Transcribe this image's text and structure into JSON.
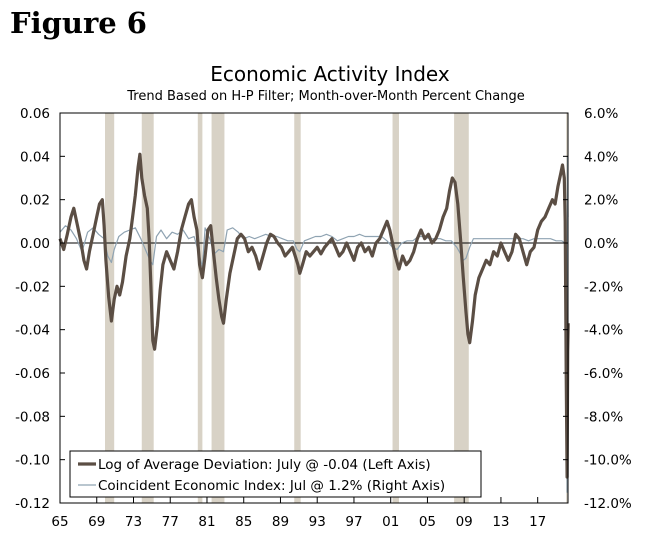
{
  "figure_label": "Figure 6",
  "chart_data": {
    "type": "line",
    "title": "Economic Activity Index",
    "subtitle": "Trend Based on H-P Filter; Month-over-Month Percent Change",
    "x_range": [
      1965,
      2020.3
    ],
    "x_ticks": [
      {
        "value": 1965,
        "label": "65"
      },
      {
        "value": 1969,
        "label": "69"
      },
      {
        "value": 1973,
        "label": "73"
      },
      {
        "value": 1977,
        "label": "77"
      },
      {
        "value": 1981,
        "label": "81"
      },
      {
        "value": 1985,
        "label": "85"
      },
      {
        "value": 1989,
        "label": "89"
      },
      {
        "value": 1993,
        "label": "93"
      },
      {
        "value": 1997,
        "label": "97"
      },
      {
        "value": 2001,
        "label": "01"
      },
      {
        "value": 2005,
        "label": "05"
      },
      {
        "value": 2009,
        "label": "09"
      },
      {
        "value": 2013,
        "label": "13"
      },
      {
        "value": 2017,
        "label": "17"
      }
    ],
    "left_axis": {
      "ylim": [
        -0.12,
        0.06
      ],
      "ticks": [
        "0.06",
        "0.04",
        "0.02",
        "0.00",
        "-0.02",
        "-0.04",
        "-0.06",
        "-0.08",
        "-0.10",
        "-0.12"
      ],
      "tick_values": [
        0.06,
        0.04,
        0.02,
        0.0,
        -0.02,
        -0.04,
        -0.06,
        -0.08,
        -0.1,
        -0.12
      ]
    },
    "right_axis": {
      "ylim": [
        -12.0,
        6.0
      ],
      "ticks": [
        "6.0%",
        "4.0%",
        "2.0%",
        "0.0%",
        "-2.0%",
        "-4.0%",
        "-6.0%",
        "-8.0%",
        "-10.0%",
        "-12.0%"
      ],
      "tick_values": [
        6,
        4,
        2,
        0,
        -2,
        -4,
        -6,
        -8,
        -10,
        -12
      ]
    },
    "recessions": [
      [
        1969.9,
        1970.9
      ],
      [
        1973.9,
        1975.2
      ],
      [
        1980.0,
        1980.5
      ],
      [
        1981.5,
        1982.9
      ],
      [
        1990.5,
        1991.2
      ],
      [
        2001.2,
        2001.9
      ],
      [
        2007.9,
        2009.5
      ],
      [
        2020.1,
        2020.3
      ]
    ],
    "series": [
      {
        "name": "Log of Average Deviation: July @ -0.04 (Left Axis)",
        "axis": "left",
        "color": "#5b4e44",
        "points": [
          [
            1965.0,
            0.002
          ],
          [
            1965.4,
            -0.003
          ],
          [
            1965.8,
            0.004
          ],
          [
            1966.2,
            0.012
          ],
          [
            1966.5,
            0.016
          ],
          [
            1966.9,
            0.008
          ],
          [
            1967.3,
            0.0
          ],
          [
            1967.6,
            -0.008
          ],
          [
            1967.9,
            -0.012
          ],
          [
            1968.2,
            -0.004
          ],
          [
            1968.6,
            0.004
          ],
          [
            1969.0,
            0.012
          ],
          [
            1969.3,
            0.018
          ],
          [
            1969.6,
            0.02
          ],
          [
            1969.8,
            0.008
          ],
          [
            1970.0,
            -0.008
          ],
          [
            1970.3,
            -0.025
          ],
          [
            1970.6,
            -0.036
          ],
          [
            1970.9,
            -0.026
          ],
          [
            1971.2,
            -0.02
          ],
          [
            1971.5,
            -0.024
          ],
          [
            1971.8,
            -0.018
          ],
          [
            1972.2,
            -0.006
          ],
          [
            1972.6,
            0.002
          ],
          [
            1972.9,
            0.012
          ],
          [
            1973.2,
            0.022
          ],
          [
            1973.5,
            0.035
          ],
          [
            1973.7,
            0.041
          ],
          [
            1973.9,
            0.03
          ],
          [
            1974.2,
            0.022
          ],
          [
            1974.5,
            0.016
          ],
          [
            1974.7,
            0.002
          ],
          [
            1974.9,
            -0.02
          ],
          [
            1975.1,
            -0.045
          ],
          [
            1975.3,
            -0.049
          ],
          [
            1975.6,
            -0.038
          ],
          [
            1975.9,
            -0.022
          ],
          [
            1976.2,
            -0.01
          ],
          [
            1976.6,
            -0.004
          ],
          [
            1977.0,
            -0.008
          ],
          [
            1977.4,
            -0.012
          ],
          [
            1977.8,
            -0.004
          ],
          [
            1978.2,
            0.006
          ],
          [
            1978.6,
            0.012
          ],
          [
            1979.0,
            0.018
          ],
          [
            1979.3,
            0.02
          ],
          [
            1979.6,
            0.012
          ],
          [
            1979.9,
            0.006
          ],
          [
            1980.2,
            -0.01
          ],
          [
            1980.5,
            -0.016
          ],
          [
            1980.8,
            -0.006
          ],
          [
            1981.1,
            0.006
          ],
          [
            1981.4,
            0.008
          ],
          [
            1981.7,
            -0.004
          ],
          [
            1982.0,
            -0.016
          ],
          [
            1982.3,
            -0.026
          ],
          [
            1982.6,
            -0.034
          ],
          [
            1982.8,
            -0.037
          ],
          [
            1983.1,
            -0.026
          ],
          [
            1983.5,
            -0.014
          ],
          [
            1983.9,
            -0.006
          ],
          [
            1984.3,
            0.002
          ],
          [
            1984.7,
            0.004
          ],
          [
            1985.1,
            0.002
          ],
          [
            1985.5,
            -0.004
          ],
          [
            1985.9,
            -0.002
          ],
          [
            1986.3,
            -0.006
          ],
          [
            1986.7,
            -0.012
          ],
          [
            1987.1,
            -0.006
          ],
          [
            1987.5,
            0.0
          ],
          [
            1987.9,
            0.004
          ],
          [
            1988.3,
            0.003
          ],
          [
            1988.7,
            0.0
          ],
          [
            1989.1,
            -0.002
          ],
          [
            1989.5,
            -0.006
          ],
          [
            1989.9,
            -0.004
          ],
          [
            1990.3,
            -0.002
          ],
          [
            1990.6,
            -0.006
          ],
          [
            1990.9,
            -0.01
          ],
          [
            1991.1,
            -0.014
          ],
          [
            1991.4,
            -0.01
          ],
          [
            1991.8,
            -0.004
          ],
          [
            1992.2,
            -0.006
          ],
          [
            1992.6,
            -0.004
          ],
          [
            1993.0,
            -0.002
          ],
          [
            1993.4,
            -0.005
          ],
          [
            1993.8,
            -0.002
          ],
          [
            1994.2,
            0.0
          ],
          [
            1994.6,
            0.002
          ],
          [
            1995.0,
            -0.002
          ],
          [
            1995.4,
            -0.006
          ],
          [
            1995.8,
            -0.004
          ],
          [
            1996.2,
            0.0
          ],
          [
            1996.6,
            -0.004
          ],
          [
            1997.0,
            -0.008
          ],
          [
            1997.4,
            -0.002
          ],
          [
            1997.8,
            0.0
          ],
          [
            1998.2,
            -0.004
          ],
          [
            1998.6,
            -0.002
          ],
          [
            1999.0,
            -0.006
          ],
          [
            1999.4,
            0.0
          ],
          [
            1999.8,
            0.002
          ],
          [
            2000.2,
            0.006
          ],
          [
            2000.6,
            0.01
          ],
          [
            2000.9,
            0.006
          ],
          [
            2001.2,
            0.0
          ],
          [
            2001.5,
            -0.006
          ],
          [
            2001.9,
            -0.012
          ],
          [
            2002.3,
            -0.006
          ],
          [
            2002.7,
            -0.01
          ],
          [
            2003.1,
            -0.008
          ],
          [
            2003.5,
            -0.004
          ],
          [
            2003.9,
            0.002
          ],
          [
            2004.3,
            0.006
          ],
          [
            2004.7,
            0.002
          ],
          [
            2005.1,
            0.004
          ],
          [
            2005.5,
            0.0
          ],
          [
            2005.9,
            0.002
          ],
          [
            2006.3,
            0.006
          ],
          [
            2006.7,
            0.012
          ],
          [
            2007.1,
            0.016
          ],
          [
            2007.4,
            0.024
          ],
          [
            2007.7,
            0.03
          ],
          [
            2008.0,
            0.028
          ],
          [
            2008.3,
            0.018
          ],
          [
            2008.6,
            0.002
          ],
          [
            2008.9,
            -0.016
          ],
          [
            2009.2,
            -0.032
          ],
          [
            2009.4,
            -0.042
          ],
          [
            2009.6,
            -0.046
          ],
          [
            2009.9,
            -0.036
          ],
          [
            2010.2,
            -0.024
          ],
          [
            2010.6,
            -0.016
          ],
          [
            2011.0,
            -0.012
          ],
          [
            2011.4,
            -0.008
          ],
          [
            2011.8,
            -0.01
          ],
          [
            2012.2,
            -0.004
          ],
          [
            2012.6,
            -0.006
          ],
          [
            2013.0,
            0.0
          ],
          [
            2013.4,
            -0.004
          ],
          [
            2013.8,
            -0.008
          ],
          [
            2014.2,
            -0.004
          ],
          [
            2014.6,
            0.004
          ],
          [
            2015.0,
            0.002
          ],
          [
            2015.4,
            -0.004
          ],
          [
            2015.8,
            -0.01
          ],
          [
            2016.2,
            -0.004
          ],
          [
            2016.6,
            -0.002
          ],
          [
            2017.0,
            0.006
          ],
          [
            2017.4,
            0.01
          ],
          [
            2017.8,
            0.012
          ],
          [
            2018.2,
            0.016
          ],
          [
            2018.6,
            0.02
          ],
          [
            2018.9,
            0.018
          ],
          [
            2019.2,
            0.026
          ],
          [
            2019.5,
            0.032
          ],
          [
            2019.7,
            0.036
          ],
          [
            2019.9,
            0.03
          ],
          [
            2020.0,
            0.01
          ],
          [
            2020.1,
            -0.06
          ],
          [
            2020.2,
            -0.108
          ],
          [
            2020.27,
            -0.05
          ],
          [
            2020.32,
            -0.037
          ]
        ]
      },
      {
        "name": "Coincident Economic Index: Jul @ 1.2% (Right Axis)",
        "axis": "right",
        "color": "#8fa3b2",
        "points": [
          [
            1965.0,
            0.5
          ],
          [
            1965.6,
            0.8
          ],
          [
            1966.2,
            0.6
          ],
          [
            1966.8,
            0.2
          ],
          [
            1967.4,
            -0.4
          ],
          [
            1968.0,
            0.5
          ],
          [
            1968.6,
            0.7
          ],
          [
            1969.2,
            0.4
          ],
          [
            1969.8,
            0.2
          ],
          [
            1970.2,
            -0.6
          ],
          [
            1970.6,
            -0.9
          ],
          [
            1970.9,
            -0.3
          ],
          [
            1971.4,
            0.3
          ],
          [
            1972.0,
            0.5
          ],
          [
            1972.6,
            0.6
          ],
          [
            1973.2,
            0.7
          ],
          [
            1973.8,
            0.2
          ],
          [
            1974.3,
            -0.3
          ],
          [
            1974.8,
            -0.8
          ],
          [
            1975.1,
            -1.0
          ],
          [
            1975.5,
            0.3
          ],
          [
            1976.0,
            0.6
          ],
          [
            1976.6,
            0.2
          ],
          [
            1977.2,
            0.5
          ],
          [
            1977.8,
            0.4
          ],
          [
            1978.4,
            0.6
          ],
          [
            1979.0,
            0.2
          ],
          [
            1979.6,
            0.3
          ],
          [
            1980.2,
            -0.6
          ],
          [
            1980.5,
            -1.1
          ],
          [
            1980.8,
            0.7
          ],
          [
            1981.3,
            0.2
          ],
          [
            1981.8,
            -0.5
          ],
          [
            1982.3,
            -0.3
          ],
          [
            1982.8,
            -0.4
          ],
          [
            1983.2,
            0.6
          ],
          [
            1983.8,
            0.7
          ],
          [
            1984.4,
            0.5
          ],
          [
            1985.0,
            0.2
          ],
          [
            1985.6,
            0.3
          ],
          [
            1986.2,
            0.2
          ],
          [
            1986.8,
            0.3
          ],
          [
            1987.4,
            0.4
          ],
          [
            1988.0,
            0.3
          ],
          [
            1988.6,
            0.3
          ],
          [
            1989.2,
            0.2
          ],
          [
            1989.8,
            0.1
          ],
          [
            1990.4,
            0.1
          ],
          [
            1990.8,
            -0.3
          ],
          [
            1991.1,
            -0.4
          ],
          [
            1991.6,
            0.1
          ],
          [
            1992.2,
            0.2
          ],
          [
            1992.8,
            0.3
          ],
          [
            1993.4,
            0.3
          ],
          [
            1994.0,
            0.4
          ],
          [
            1994.6,
            0.3
          ],
          [
            1995.2,
            0.1
          ],
          [
            1995.8,
            0.2
          ],
          [
            1996.4,
            0.3
          ],
          [
            1997.0,
            0.3
          ],
          [
            1997.6,
            0.4
          ],
          [
            1998.2,
            0.3
          ],
          [
            1998.8,
            0.3
          ],
          [
            1999.4,
            0.3
          ],
          [
            2000.0,
            0.3
          ],
          [
            2000.6,
            0.1
          ],
          [
            2001.2,
            -0.2
          ],
          [
            2001.7,
            -0.3
          ],
          [
            2002.2,
            0.0
          ],
          [
            2002.8,
            0.1
          ],
          [
            2003.4,
            0.1
          ],
          [
            2004.0,
            0.3
          ],
          [
            2004.6,
            0.3
          ],
          [
            2005.2,
            0.2
          ],
          [
            2005.8,
            0.2
          ],
          [
            2006.4,
            0.2
          ],
          [
            2007.0,
            0.1
          ],
          [
            2007.6,
            0.1
          ],
          [
            2008.2,
            -0.2
          ],
          [
            2008.6,
            -0.5
          ],
          [
            2008.9,
            -0.8
          ],
          [
            2009.2,
            -0.7
          ],
          [
            2009.6,
            -0.2
          ],
          [
            2010.0,
            0.2
          ],
          [
            2010.6,
            0.2
          ],
          [
            2011.2,
            0.2
          ],
          [
            2011.8,
            0.2
          ],
          [
            2012.4,
            0.2
          ],
          [
            2013.0,
            0.2
          ],
          [
            2013.6,
            0.2
          ],
          [
            2014.2,
            0.2
          ],
          [
            2014.8,
            0.2
          ],
          [
            2015.4,
            0.2
          ],
          [
            2016.0,
            0.1
          ],
          [
            2016.6,
            0.2
          ],
          [
            2017.2,
            0.2
          ],
          [
            2017.8,
            0.2
          ],
          [
            2018.4,
            0.2
          ],
          [
            2019.0,
            0.1
          ],
          [
            2019.6,
            0.1
          ],
          [
            2020.0,
            0.0
          ],
          [
            2020.15,
            -2.0
          ],
          [
            2020.2,
            -11.5
          ],
          [
            2020.25,
            4.0
          ],
          [
            2020.3,
            1.2
          ]
        ]
      }
    ]
  }
}
